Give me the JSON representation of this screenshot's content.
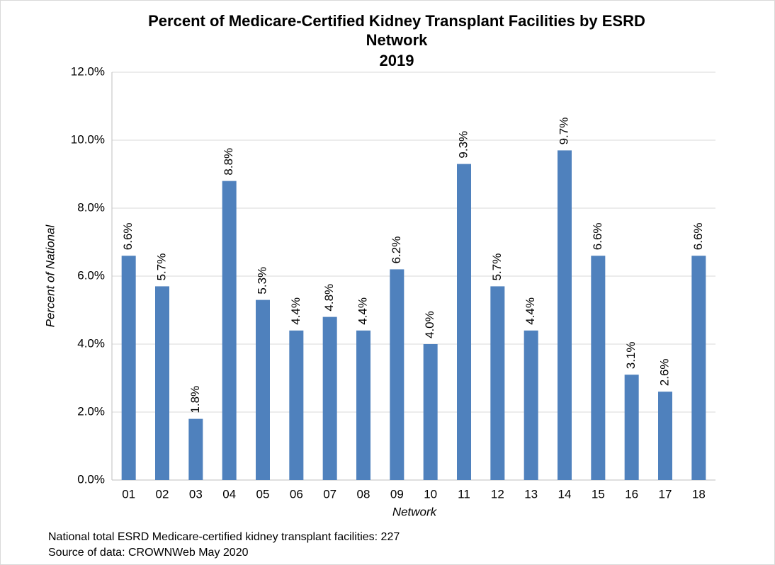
{
  "chart_data": {
    "type": "bar",
    "title": "Percent of Medicare-Certified Kidney Transplant Facilities by ESRD Network",
    "subtitle": "2019",
    "xlabel": "Network",
    "ylabel": "Percent of National",
    "categories": [
      "01",
      "02",
      "03",
      "04",
      "05",
      "06",
      "07",
      "08",
      "09",
      "10",
      "11",
      "12",
      "13",
      "14",
      "15",
      "16",
      "17",
      "18"
    ],
    "values": [
      6.6,
      5.7,
      1.8,
      8.8,
      5.3,
      4.4,
      4.8,
      4.4,
      6.2,
      4.0,
      9.3,
      5.7,
      4.4,
      9.7,
      6.6,
      3.1,
      2.6,
      6.6
    ],
    "value_labels": [
      "6.6%",
      "5.7%",
      "1.8%",
      "8.8%",
      "5.3%",
      "4.4%",
      "4.8%",
      "4.4%",
      "6.2%",
      "4.0%",
      "9.3%",
      "5.7%",
      "4.4%",
      "9.7%",
      "6.6%",
      "3.1%",
      "2.6%",
      "6.6%"
    ],
    "color": "#4f81bd",
    "ylim": [
      0,
      12
    ],
    "yticks": [
      {
        "value": 0,
        "label": "0.0%"
      },
      {
        "value": 2,
        "label": "2.0%"
      },
      {
        "value": 4,
        "label": "4.0%"
      },
      {
        "value": 6,
        "label": "6.0%"
      },
      {
        "value": 8,
        "label": "8.0%"
      },
      {
        "value": 10,
        "label": "10.0%"
      },
      {
        "value": 12,
        "label": "12.0%"
      }
    ],
    "grid": true,
    "notes": [
      "National total ESRD Medicare-certified kidney transplant facilities: 227",
      "Source of data:  CROWNWeb May 2020"
    ]
  }
}
